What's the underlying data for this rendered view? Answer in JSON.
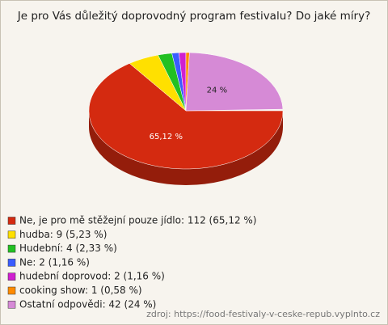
{
  "chart_data": {
    "type": "pie3d",
    "title": "Je pro Vás důležitý doprovodný program festivalu? Do jaké míry?",
    "categories": [
      "Ne, je pro mě stěžejní pouze jídlo: 112 (65,12 %)",
      "hudba: 9 (5,23 %)",
      "Hudební: 4 (2,33 %)",
      "Ne: 2 (1,16 %)",
      "hudební doprovod: 2 (1,16 %)",
      "cooking show: 1 (0,58 %)",
      "Ostatní odpovědi: 42 (24 %)"
    ],
    "values": [
      65.12,
      5.23,
      2.33,
      1.16,
      1.16,
      0.58,
      24
    ],
    "value_labels": [
      "65,12 %",
      null,
      null,
      null,
      null,
      null,
      "24 %"
    ],
    "colors": [
      "#d42a10",
      "#ffe000",
      "#22c022",
      "#3a5cff",
      "#d020d0",
      "#ff8a00",
      "#d68ad6"
    ],
    "source": "zdroj: https://food-festivaly-v-ceske-repub.vyplnto.cz"
  }
}
